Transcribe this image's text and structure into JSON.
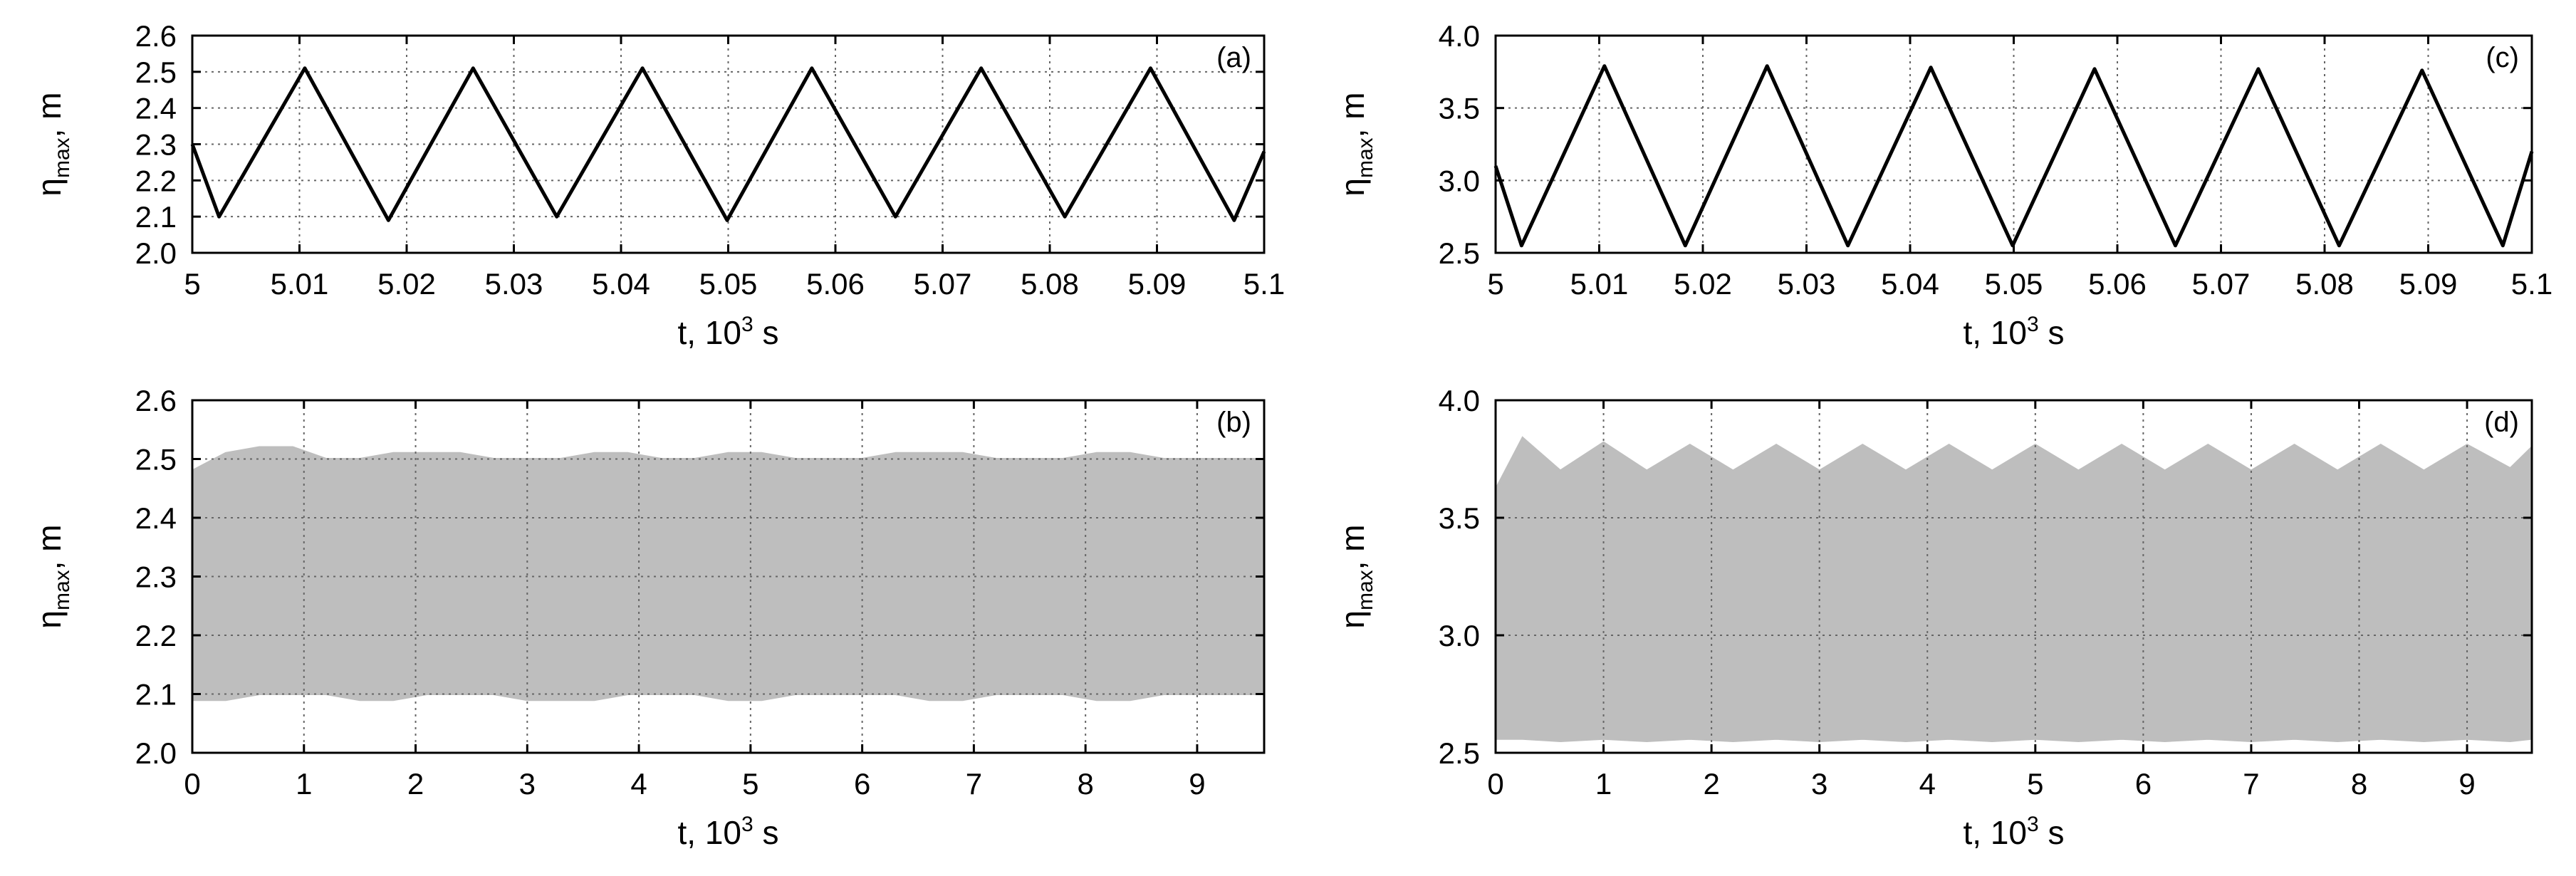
{
  "chart_data": [
    {
      "id": "a",
      "type": "line",
      "panel_label": "(a)",
      "xlabel": {
        "text": "t, 10",
        "sup": "3",
        "tail": " s"
      },
      "ylabel": {
        "text": "η",
        "sub": "max",
        "tail": ", m"
      },
      "xlim": [
        5.0,
        5.1
      ],
      "ylim": [
        2.0,
        2.6
      ],
      "xticks": [
        "5",
        "5.01",
        "5.02",
        "5.03",
        "5.04",
        "5.05",
        "5.06",
        "5.07",
        "5.08",
        "5.09",
        "5.1"
      ],
      "yticks": [
        "2.0",
        "2.1",
        "2.2",
        "2.3",
        "2.4",
        "2.5",
        "2.6"
      ],
      "grid": true,
      "series": [
        {
          "name": "eta_max",
          "color": "#000000",
          "x": [
            5.0,
            5.0025,
            5.0105,
            5.0183,
            5.0262,
            5.034,
            5.042,
            5.0499,
            5.0578,
            5.0656,
            5.0736,
            5.0814,
            5.0894,
            5.0972,
            5.1
          ],
          "y": [
            2.3,
            2.1,
            2.51,
            2.09,
            2.51,
            2.1,
            2.51,
            2.09,
            2.51,
            2.1,
            2.51,
            2.1,
            2.51,
            2.09,
            2.28
          ]
        }
      ]
    },
    {
      "id": "b",
      "type": "area",
      "panel_label": "(b)",
      "xlabel": {
        "text": "t, 10",
        "sup": "3",
        "tail": " s"
      },
      "ylabel": {
        "text": "η",
        "sub": "max",
        "tail": ", m"
      },
      "xlim": [
        0,
        9.6
      ],
      "ylim": [
        2.0,
        2.6
      ],
      "xticks": [
        "0",
        "1",
        "2",
        "3",
        "4",
        "5",
        "6",
        "7",
        "8",
        "9"
      ],
      "yticks": [
        "2.0",
        "2.1",
        "2.2",
        "2.3",
        "2.4",
        "2.5",
        "2.6"
      ],
      "grid": true,
      "envelope": {
        "color": "#bebebe",
        "x": [
          0,
          0.3,
          0.6,
          0.9,
          1.2,
          1.5,
          1.8,
          2.1,
          2.4,
          2.7,
          3.0,
          3.3,
          3.6,
          3.9,
          4.2,
          4.5,
          4.8,
          5.1,
          5.4,
          5.7,
          6.0,
          6.3,
          6.6,
          6.9,
          7.2,
          7.5,
          7.8,
          8.1,
          8.4,
          8.7,
          9.0,
          9.3,
          9.6
        ],
        "upper": [
          2.48,
          2.51,
          2.52,
          2.52,
          2.5,
          2.5,
          2.51,
          2.51,
          2.51,
          2.5,
          2.5,
          2.5,
          2.51,
          2.51,
          2.5,
          2.5,
          2.51,
          2.51,
          2.5,
          2.5,
          2.5,
          2.51,
          2.51,
          2.51,
          2.5,
          2.5,
          2.5,
          2.51,
          2.51,
          2.5,
          2.5,
          2.5,
          2.5
        ],
        "lower": [
          2.09,
          2.09,
          2.1,
          2.1,
          2.1,
          2.09,
          2.09,
          2.1,
          2.1,
          2.1,
          2.09,
          2.09,
          2.09,
          2.1,
          2.1,
          2.1,
          2.09,
          2.09,
          2.1,
          2.1,
          2.1,
          2.1,
          2.09,
          2.09,
          2.1,
          2.1,
          2.1,
          2.09,
          2.09,
          2.1,
          2.1,
          2.1,
          2.1
        ]
      }
    },
    {
      "id": "c",
      "type": "line",
      "panel_label": "(c)",
      "xlabel": {
        "text": "t, 10",
        "sup": "3",
        "tail": " s"
      },
      "ylabel": {
        "text": "η",
        "sub": "max",
        "tail": ", m"
      },
      "xlim": [
        5.0,
        5.1
      ],
      "ylim": [
        2.5,
        4.0
      ],
      "xticks": [
        "5",
        "5.01",
        "5.02",
        "5.03",
        "5.04",
        "5.05",
        "5.06",
        "5.07",
        "5.08",
        "5.09",
        "5.1"
      ],
      "yticks": [
        "2.5",
        "3.0",
        "3.5",
        "4.0"
      ],
      "grid": true,
      "series": [
        {
          "name": "eta_max",
          "color": "#000000",
          "x": [
            5.0,
            5.0025,
            5.0105,
            5.0183,
            5.0262,
            5.034,
            5.042,
            5.0499,
            5.0578,
            5.0656,
            5.0736,
            5.0814,
            5.0894,
            5.0972,
            5.1
          ],
          "y": [
            3.1,
            2.55,
            3.79,
            2.55,
            3.79,
            2.55,
            3.78,
            2.55,
            3.77,
            2.55,
            3.77,
            2.55,
            3.76,
            2.55,
            3.2
          ]
        }
      ]
    },
    {
      "id": "d",
      "type": "area",
      "panel_label": "(d)",
      "xlabel": {
        "text": "t, 10",
        "sup": "3",
        "tail": " s"
      },
      "ylabel": {
        "text": "η",
        "sub": "max",
        "tail": ", m"
      },
      "xlim": [
        0,
        9.6
      ],
      "ylim": [
        2.5,
        4.0
      ],
      "xticks": [
        "0",
        "1",
        "2",
        "3",
        "4",
        "5",
        "6",
        "7",
        "8",
        "9"
      ],
      "yticks": [
        "2.5",
        "3.0",
        "3.5",
        "4.0"
      ],
      "grid": true,
      "envelope": {
        "color": "#bebebe",
        "x": [
          0,
          0.25,
          0.6,
          1.0,
          1.4,
          1.8,
          2.2,
          2.6,
          3.0,
          3.4,
          3.8,
          4.2,
          4.6,
          5.0,
          5.4,
          5.8,
          6.2,
          6.6,
          7.0,
          7.4,
          7.8,
          8.2,
          8.6,
          9.0,
          9.4,
          9.6
        ],
        "upper": [
          3.62,
          3.84,
          3.7,
          3.82,
          3.7,
          3.81,
          3.7,
          3.81,
          3.7,
          3.81,
          3.7,
          3.81,
          3.7,
          3.81,
          3.7,
          3.81,
          3.7,
          3.81,
          3.7,
          3.81,
          3.7,
          3.81,
          3.7,
          3.81,
          3.71,
          3.8
        ],
        "lower": [
          2.56,
          2.56,
          2.55,
          2.56,
          2.55,
          2.56,
          2.55,
          2.56,
          2.55,
          2.56,
          2.55,
          2.56,
          2.55,
          2.56,
          2.55,
          2.56,
          2.55,
          2.56,
          2.55,
          2.56,
          2.55,
          2.56,
          2.55,
          2.56,
          2.55,
          2.56
        ]
      }
    }
  ]
}
